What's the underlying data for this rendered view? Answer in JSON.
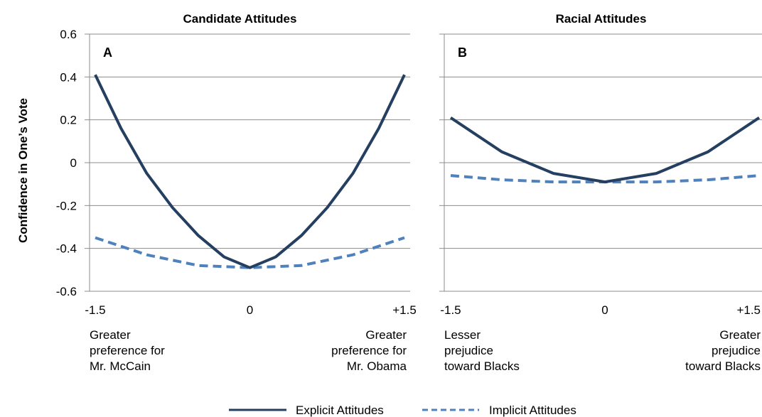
{
  "figure": {
    "ylabel": "Confidence in One’s Vote",
    "legend": {
      "placement": "bottom-center",
      "items": [
        {
          "label": "Explicit Attitudes",
          "style": "solid",
          "color": "#243F60"
        },
        {
          "label": "Implicit Attitudes",
          "style": "dashed",
          "color": "#4F81BD"
        }
      ]
    }
  },
  "chart_data": [
    {
      "type": "line",
      "title": "Candidate Attitudes",
      "panel_label": "A",
      "xlim": [
        -1.5,
        1.5
      ],
      "ylim": [
        -0.6,
        0.6
      ],
      "yticks": [
        "0.6",
        "0.4",
        "0.2",
        "0",
        "-0.2",
        "-0.4",
        "-0.6"
      ],
      "xticks": [
        "-1.5",
        "0",
        "+1.5"
      ],
      "x_end_labels": {
        "left": [
          "Greater",
          "preference for",
          "Mr. McCain"
        ],
        "right": [
          "Greater",
          "preference for",
          "Mr. Obama"
        ]
      },
      "grid": true,
      "series": [
        {
          "name": "Explicit Attitudes",
          "x": [
            -1.5,
            -1.25,
            -1.0,
            -0.75,
            -0.5,
            -0.25,
            0,
            0.25,
            0.5,
            0.75,
            1.0,
            1.25,
            1.5
          ],
          "y": [
            0.41,
            0.16,
            -0.05,
            -0.21,
            -0.34,
            -0.44,
            -0.49,
            -0.44,
            -0.34,
            -0.21,
            -0.05,
            0.16,
            0.41
          ]
        },
        {
          "name": "Implicit Attitudes",
          "x": [
            -1.5,
            -1.0,
            -0.5,
            0,
            0.5,
            1.0,
            1.5
          ],
          "y": [
            -0.35,
            -0.43,
            -0.48,
            -0.49,
            -0.48,
            -0.43,
            -0.35
          ]
        }
      ]
    },
    {
      "type": "line",
      "title": "Racial Attitudes",
      "panel_label": "B",
      "xlim": [
        -1.5,
        1.5
      ],
      "ylim": [
        -0.6,
        0.6
      ],
      "yticks": [
        "0.6",
        "0.4",
        "0.2",
        "0",
        "-0.2",
        "-0.4",
        "-0.6"
      ],
      "xticks": [
        "-1.5",
        "0",
        "+1.5"
      ],
      "x_end_labels": {
        "left": [
          "Lesser",
          "prejudice",
          "toward Blacks"
        ],
        "right": [
          "Greater",
          "prejudice",
          "toward Blacks"
        ]
      },
      "grid": true,
      "series": [
        {
          "name": "Explicit Attitudes",
          "x": [
            -1.5,
            -1.0,
            -0.5,
            0,
            0.5,
            1.0,
            1.5
          ],
          "y": [
            0.21,
            0.05,
            -0.05,
            -0.09,
            -0.05,
            0.05,
            0.21
          ]
        },
        {
          "name": "Implicit Attitudes",
          "x": [
            -1.5,
            -1.0,
            -0.5,
            0,
            0.5,
            1.0,
            1.5
          ],
          "y": [
            -0.06,
            -0.08,
            -0.09,
            -0.09,
            -0.09,
            -0.08,
            -0.06
          ]
        }
      ]
    }
  ]
}
